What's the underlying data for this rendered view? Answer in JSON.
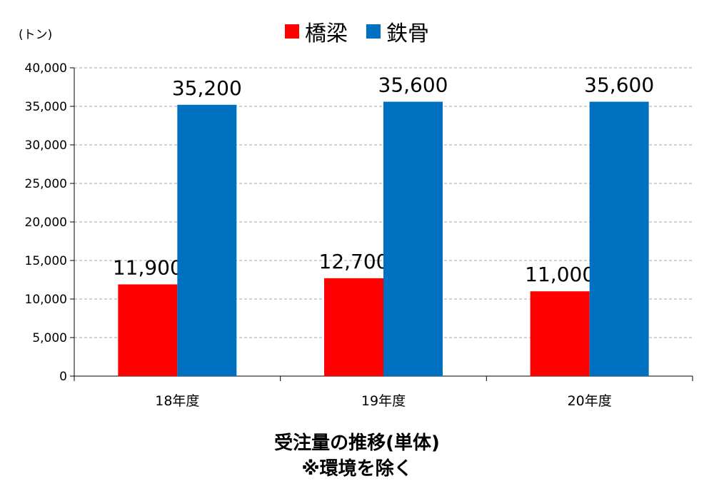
{
  "chart_data": {
    "type": "bar",
    "unit_label": "(トン)",
    "categories": [
      "18年度",
      "19年度",
      "20年度"
    ],
    "series": [
      {
        "name": "橋梁",
        "color": "#ff0000",
        "values": [
          11900,
          12700,
          11000
        ]
      },
      {
        "name": "鉄骨",
        "color": "#0070c0",
        "values": [
          35200,
          35600,
          35600
        ]
      }
    ],
    "ylim": [
      0,
      40000
    ],
    "yticks": [
      0,
      5000,
      10000,
      15000,
      20000,
      25000,
      30000,
      35000,
      40000
    ],
    "grid": true,
    "legend_position": "top-center",
    "caption": [
      "受注量の推移(単体)",
      "※環境を除く"
    ]
  }
}
